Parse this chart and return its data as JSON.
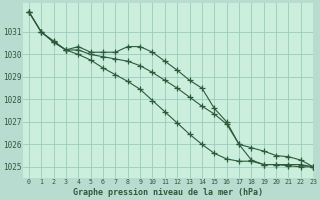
{
  "title": "Graphe pression niveau de la mer (hPa)",
  "bg_color": "#b8ddd0",
  "plot_bg_color": "#cceedd",
  "grid_color": "#99ccbb",
  "line_color": "#2d5a3a",
  "xlim": [
    -0.5,
    23
  ],
  "ylim": [
    1024.5,
    1032.3
  ],
  "yticks": [
    1025,
    1026,
    1027,
    1028,
    1029,
    1030,
    1031
  ],
  "xticks": [
    0,
    1,
    2,
    3,
    4,
    5,
    6,
    7,
    8,
    9,
    10,
    11,
    12,
    13,
    14,
    15,
    16,
    17,
    18,
    19,
    20,
    21,
    22,
    23
  ],
  "series": [
    {
      "x": [
        0,
        1,
        2,
        3,
        4,
        5,
        6,
        7,
        8,
        9,
        10,
        11,
        12,
        13,
        14,
        15,
        16,
        17,
        18,
        19,
        20,
        21,
        22,
        23
      ],
      "y": [
        1031.9,
        1031.0,
        1030.6,
        1030.2,
        1030.35,
        1030.1,
        1030.1,
        1030.1,
        1030.35,
        1030.35,
        1030.1,
        1029.7,
        1029.3,
        1028.85,
        1028.5,
        1027.6,
        1027.0,
        1026.0,
        1025.3,
        1025.1,
        1025.1,
        1025.1,
        1025.1,
        1025.0
      ]
    },
    {
      "x": [
        0,
        1,
        2,
        3,
        4,
        5,
        6,
        7,
        8,
        9,
        10,
        11,
        12,
        13,
        14,
        15,
        16,
        17,
        18,
        19,
        20,
        21,
        22,
        23
      ],
      "y": [
        1031.9,
        1031.0,
        1030.55,
        1030.2,
        1030.2,
        1030.0,
        1029.9,
        1029.8,
        1029.7,
        1029.5,
        1029.2,
        1028.85,
        1028.5,
        1028.1,
        1027.7,
        1027.35,
        1026.9,
        1026.0,
        1025.85,
        1025.7,
        1025.5,
        1025.45,
        1025.3,
        1025.0
      ]
    },
    {
      "x": [
        0,
        1,
        2,
        3,
        4,
        5,
        6,
        7,
        8,
        9,
        10,
        11,
        12,
        13,
        14,
        15,
        16,
        17,
        18,
        19,
        20,
        21,
        22,
        23
      ],
      "y": [
        1031.9,
        1031.0,
        1030.55,
        1030.2,
        1030.0,
        1029.75,
        1029.4,
        1029.1,
        1028.8,
        1028.45,
        1027.95,
        1027.45,
        1026.95,
        1026.45,
        1026.0,
        1025.6,
        1025.35,
        1025.25,
        1025.25,
        1025.1,
        1025.1,
        1025.05,
        1025.0,
        1025.0
      ]
    }
  ]
}
